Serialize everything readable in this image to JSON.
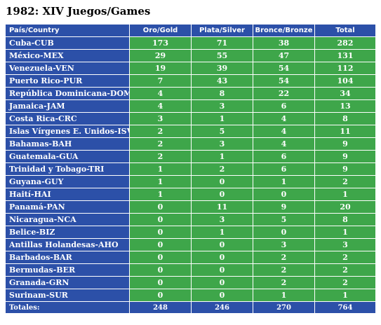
{
  "title": "1982: XIV Juegos/Games",
  "headers": {
    "country": "País/Country",
    "gold": "Oro/Gold",
    "silver": "Plata/Silver",
    "bronze": "Bronce/Bronze",
    "total": "Total"
  },
  "rows": [
    {
      "country": "Cuba-CUB",
      "gold": "173",
      "silver": "71",
      "bronze": "38",
      "total": "282"
    },
    {
      "country": "México-MEX",
      "gold": "29",
      "silver": "55",
      "bronze": "47",
      "total": "131"
    },
    {
      "country": "Venezuela-VEN",
      "gold": "19",
      "silver": "39",
      "bronze": "54",
      "total": "112"
    },
    {
      "country": "Puerto Rico-PUR",
      "gold": "7",
      "silver": "43",
      "bronze": "54",
      "total": "104"
    },
    {
      "country": "República Dominicana-DOM",
      "gold": "4",
      "silver": "8",
      "bronze": "22",
      "total": "34"
    },
    {
      "country": "Jamaica-JAM",
      "gold": "4",
      "silver": "3",
      "bronze": "6",
      "total": "13"
    },
    {
      "country": "Costa Rica-CRC",
      "gold": "3",
      "silver": "1",
      "bronze": "4",
      "total": "8"
    },
    {
      "country": "Islas Vírgenes E. Unidos-ISV",
      "gold": "2",
      "silver": "5",
      "bronze": "4",
      "total": "11"
    },
    {
      "country": "Bahamas-BAH",
      "gold": "2",
      "silver": "3",
      "bronze": "4",
      "total": "9"
    },
    {
      "country": "Guatemala-GUA",
      "gold": "2",
      "silver": "1",
      "bronze": "6",
      "total": "9"
    },
    {
      "country": "Trinidad y Tobago-TRI",
      "gold": "1",
      "silver": "2",
      "bronze": "6",
      "total": "9"
    },
    {
      "country": "Guyana-GUY",
      "gold": "1",
      "silver": "0",
      "bronze": "1",
      "total": "2"
    },
    {
      "country": "Haití-HAI",
      "gold": "1",
      "silver": "0",
      "bronze": "0",
      "total": "1"
    },
    {
      "country": "Panamá-PAN",
      "gold": "0",
      "silver": "11",
      "bronze": "9",
      "total": "20"
    },
    {
      "country": "Nicaragua-NCA",
      "gold": "0",
      "silver": "3",
      "bronze": "5",
      "total": "8"
    },
    {
      "country": "Belice-BIZ",
      "gold": "0",
      "silver": "1",
      "bronze": "0",
      "total": "1"
    },
    {
      "country": "Antillas Holandesas-AHO",
      "gold": "0",
      "silver": "0",
      "bronze": "3",
      "total": "3"
    },
    {
      "country": "Barbados-BAR",
      "gold": "0",
      "silver": "0",
      "bronze": "2",
      "total": "2"
    },
    {
      "country": "Bermudas-BER",
      "gold": "0",
      "silver": "0",
      "bronze": "2",
      "total": "2"
    },
    {
      "country": "Granada-GRN",
      "gold": "0",
      "silver": "0",
      "bronze": "2",
      "total": "2"
    },
    {
      "country": "Surinam-SUR",
      "gold": "0",
      "silver": "0",
      "bronze": "1",
      "total": "1"
    }
  ],
  "totals": {
    "label": "Totales:",
    "gold": "248",
    "silver": "246",
    "bronze": "270",
    "total": "764"
  },
  "colors": {
    "header_blue": "#2c50a8",
    "cell_green": "#3ea64a",
    "text": "#ffffff"
  }
}
